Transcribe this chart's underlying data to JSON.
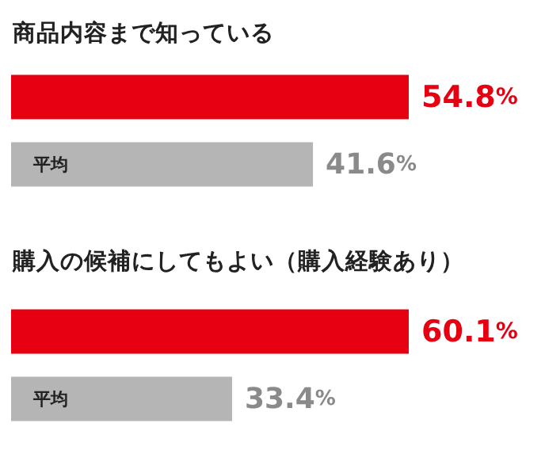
{
  "chart_data": [
    {
      "type": "bar",
      "orientation": "horizontal",
      "title": "商品内容まで知っている",
      "categories": [
        null,
        "平均"
      ],
      "values": [
        54.8,
        41.6
      ],
      "colors": [
        "#e60012",
        "#b5b5b5"
      ],
      "value_labels": [
        "54.8%",
        "41.6%"
      ]
    },
    {
      "type": "bar",
      "orientation": "horizontal",
      "title": "購入の候補にしてもよい（購入経験あり）",
      "categories": [
        null,
        "平均"
      ],
      "values": [
        60.1,
        33.4
      ],
      "colors": [
        "#e60012",
        "#b5b5b5"
      ],
      "value_labels": [
        "60.1%",
        "33.4%"
      ]
    }
  ]
}
